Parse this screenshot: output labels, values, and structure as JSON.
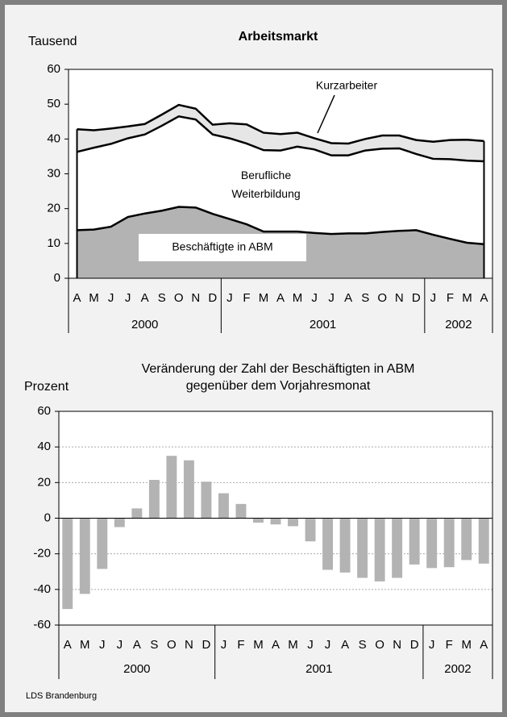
{
  "chart_data": [
    {
      "type": "stacked_area",
      "title": "Arbeitsmarkt",
      "y_label": "Tausend",
      "categories": [
        "A",
        "M",
        "J",
        "J",
        "A",
        "S",
        "O",
        "N",
        "D",
        "J",
        "F",
        "M",
        "A",
        "M",
        "J",
        "J",
        "A",
        "S",
        "O",
        "N",
        "D",
        "J",
        "F",
        "M",
        "A"
      ],
      "category_years": [
        "2000",
        "2000",
        "2000",
        "2000",
        "2000",
        "2000",
        "2000",
        "2000",
        "2000",
        "2001",
        "2001",
        "2001",
        "2001",
        "2001",
        "2001",
        "2001",
        "2001",
        "2001",
        "2001",
        "2001",
        "2001",
        "2002",
        "2002",
        "2002",
        "2002"
      ],
      "series": [
        {
          "name": "Beschäftigte in ABM",
          "color": "#b3b3b3",
          "values": [
            13.8,
            14,
            14.8,
            17.6,
            18.6,
            19.4,
            20.5,
            20.3,
            18.5,
            17,
            15.5,
            13.4,
            13.4,
            13.4,
            13,
            12.7,
            12.9,
            12.9,
            13.3,
            13.6,
            13.8,
            12.5,
            11.3,
            10.2,
            9.8
          ]
        },
        {
          "name": "Berufliche Weiterbildung",
          "color": "#ffffff",
          "values": [
            22.5,
            23.5,
            23.8,
            22.6,
            22.7,
            24.4,
            26.0,
            25.3,
            22.8,
            23.2,
            23.2,
            23.4,
            23.3,
            24.4,
            24.0,
            22.6,
            22.4,
            23.8,
            23.9,
            23.7,
            21.9,
            21.8,
            22.9,
            23.6,
            23.8
          ]
        },
        {
          "name": "Kurzarbeiter",
          "color": "#e6e6e6",
          "values": [
            6.5,
            5.0,
            4.4,
            3.4,
            3.0,
            3.2,
            3.3,
            3.1,
            2.8,
            4.3,
            5.5,
            5.0,
            4.7,
            4.0,
            3.2,
            3.5,
            3.4,
            3.3,
            3.8,
            3.7,
            4.0,
            4.9,
            5.5,
            6.0,
            5.8
          ]
        }
      ],
      "ylim": [
        0,
        60
      ],
      "yticks": [
        0,
        10,
        20,
        30,
        40,
        50,
        60
      ],
      "grid": false
    },
    {
      "type": "bar",
      "title": "Veränderung der Zahl der Beschäftigten in ABM",
      "subtitle": "gegenüber dem Vorjahresmonat",
      "y_label": "Prozent",
      "categories": [
        "A",
        "M",
        "J",
        "J",
        "A",
        "S",
        "O",
        "N",
        "D",
        "J",
        "F",
        "M",
        "A",
        "M",
        "J",
        "J",
        "A",
        "S",
        "O",
        "N",
        "D",
        "J",
        "F",
        "M",
        "A"
      ],
      "category_years": [
        "2000",
        "2000",
        "2000",
        "2000",
        "2000",
        "2000",
        "2000",
        "2000",
        "2000",
        "2001",
        "2001",
        "2001",
        "2001",
        "2001",
        "2001",
        "2001",
        "2001",
        "2001",
        "2001",
        "2001",
        "2001",
        "2002",
        "2002",
        "2002",
        "2002"
      ],
      "values": [
        -51,
        -42.5,
        -28.5,
        -5,
        5.5,
        21.5,
        35,
        32.5,
        20.5,
        14,
        8,
        -2.5,
        -3.5,
        -4.5,
        -13,
        -29,
        -30.5,
        -33.5,
        -35.5,
        -33.5,
        -26,
        -28,
        -27.5,
        -23.5,
        -25.5
      ],
      "color": "#b3b3b3",
      "ylim": [
        -60,
        60
      ],
      "yticks": [
        -60,
        -40,
        -20,
        0,
        20,
        40,
        60
      ],
      "grid": true
    }
  ],
  "footer": "LDS Brandenburg"
}
